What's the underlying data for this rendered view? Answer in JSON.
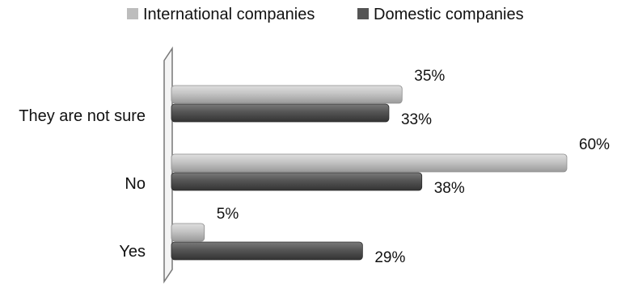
{
  "chart_data": {
    "type": "bar",
    "orientation": "horizontal",
    "categories": [
      "They are not sure",
      "No",
      "Yes"
    ],
    "series": [
      {
        "name": "International companies",
        "values": [
          35,
          60,
          5
        ],
        "labels": [
          "35%",
          "60%",
          "5%"
        ],
        "color": "#bdbdbd"
      },
      {
        "name": "Domestic companies",
        "values": [
          33,
          38,
          29
        ],
        "labels": [
          "33%",
          "38%",
          "29%"
        ],
        "color": "#555555"
      }
    ],
    "unit": "%",
    "xlim": [
      0,
      60
    ],
    "legend_position": "top",
    "grid": false
  }
}
